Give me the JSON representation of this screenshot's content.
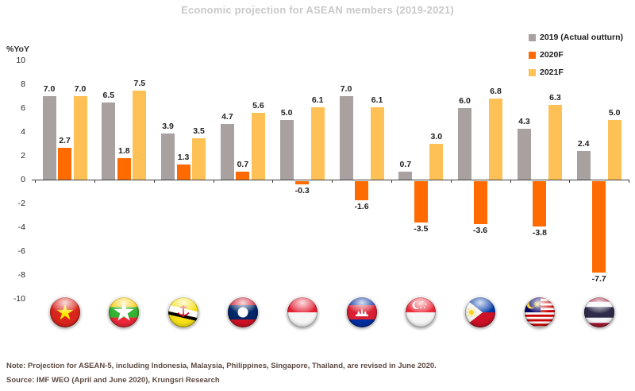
{
  "title": "Economic projection for ASEAN members (2019-2021)",
  "y_axis": {
    "label": "%YoY",
    "ticks": [
      10,
      8,
      6,
      4,
      2,
      0,
      -2,
      -4,
      -6,
      -8,
      -10
    ]
  },
  "legend": [
    {
      "label": "2019 (Actual outturn)",
      "color": "#a8a1a0"
    },
    {
      "label": "2020F",
      "color": "#ff6b00"
    },
    {
      "label": "2021F",
      "color": "#ffc155"
    }
  ],
  "chart_data": {
    "type": "bar",
    "title": "Economic projection for ASEAN members (2019-2021)",
    "xlabel": "",
    "ylabel": "%YoY",
    "ylim": [
      -10,
      10
    ],
    "ytick_step": 2,
    "grid": false,
    "legend_position": "top-right",
    "categories": [
      "Vietnam",
      "Myanmar",
      "Brunei",
      "Laos",
      "Indonesia",
      "Cambodia",
      "Singapore",
      "Philippines",
      "Malaysia",
      "Thailand"
    ],
    "flags": [
      "vietnam-flag-icon",
      "myanmar-flag-icon",
      "brunei-flag-icon",
      "laos-flag-icon",
      "indonesia-flag-icon",
      "cambodia-flag-icon",
      "singapore-flag-icon",
      "philippines-flag-icon",
      "malaysia-flag-icon",
      "thailand-flag-icon"
    ],
    "series": [
      {
        "name": "2019 (Actual outturn)",
        "color": "#a8a1a0",
        "values": [
          7.0,
          6.5,
          3.9,
          4.7,
          5.0,
          7.0,
          0.7,
          6.0,
          4.3,
          2.4
        ]
      },
      {
        "name": "2020F",
        "color": "#ff6b00",
        "values": [
          2.7,
          1.8,
          1.3,
          0.7,
          -0.3,
          -1.6,
          -3.5,
          -3.6,
          -3.8,
          -7.7
        ]
      },
      {
        "name": "2021F",
        "color": "#ffc155",
        "values": [
          7.0,
          7.5,
          3.5,
          5.6,
          6.1,
          6.1,
          3.0,
          6.8,
          6.3,
          5.0
        ]
      }
    ]
  },
  "footer": {
    "note": "Note: Projection for ASEAN-5, including Indonesia, Malaysia, Philippines, Singapore, Thailand, are revised in June 2020.",
    "source": "Source: IMF WEO (April and June 2020), Krungsri Research"
  }
}
